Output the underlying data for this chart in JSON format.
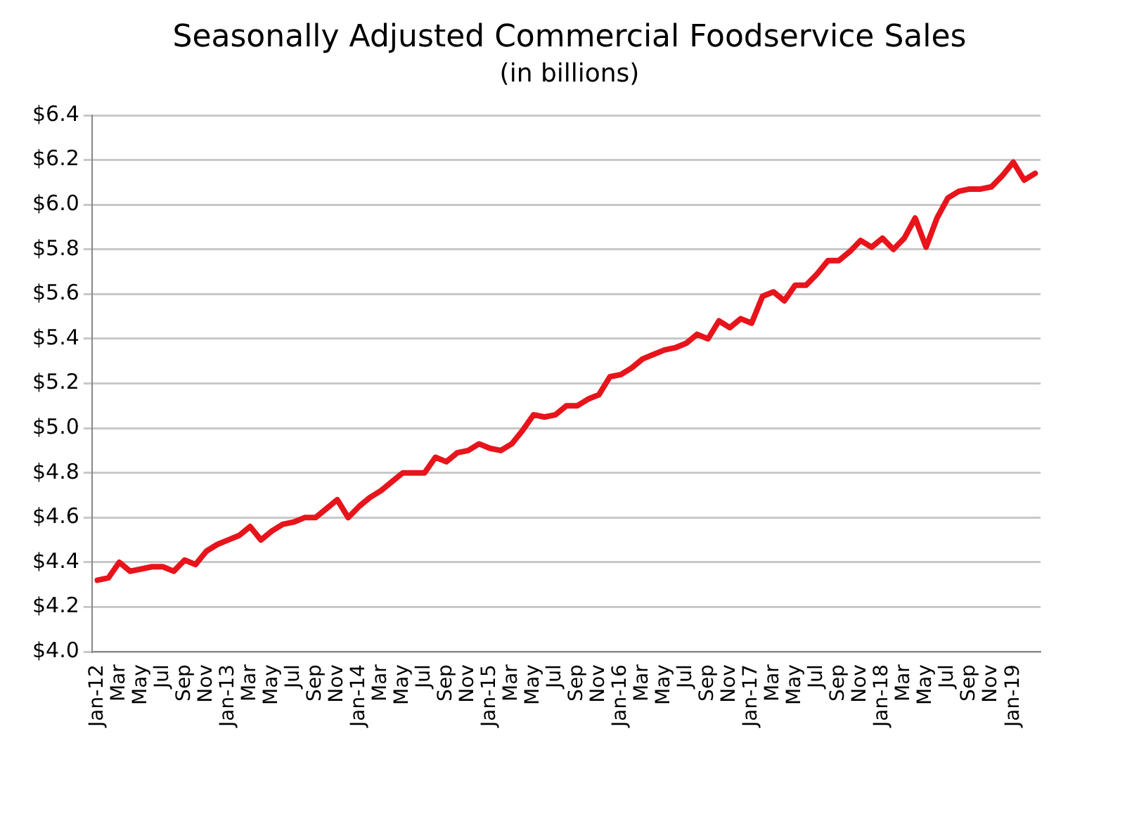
{
  "chart_data": {
    "type": "line",
    "title": "Seasonally Adjusted Commercial Foodservice Sales",
    "subtitle": "(in billions)",
    "categories": [
      "Jan-12",
      null,
      "Mar",
      null,
      "May",
      null,
      "Jul",
      null,
      "Sep",
      null,
      "Nov",
      null,
      "Jan-13",
      null,
      "Mar",
      null,
      "May",
      null,
      "Jul",
      null,
      "Sep",
      null,
      "Nov",
      null,
      "Jan-14",
      null,
      "Mar",
      null,
      "May",
      null,
      "Jul",
      null,
      "Sep",
      null,
      "Nov",
      null,
      "Jan-15",
      null,
      "Mar",
      null,
      "May",
      null,
      "Jul",
      null,
      "Sep",
      null,
      "Nov",
      null,
      "Jan-16",
      null,
      "Mar",
      null,
      "May",
      null,
      "Jul",
      null,
      "Sep",
      null,
      "Nov",
      null,
      "Jan-17",
      null,
      "Mar",
      null,
      "May",
      null,
      "Jul",
      null,
      "Sep",
      null,
      "Nov",
      null,
      "Jan-18",
      null,
      "Mar",
      null,
      "May",
      null,
      "Jul",
      null,
      "Sep",
      null,
      "Nov",
      null,
      "Jan-19",
      null,
      null
    ],
    "series": [
      {
        "color": "#e8141b",
        "values": [
          4.32,
          4.33,
          4.4,
          4.36,
          4.37,
          4.38,
          4.38,
          4.36,
          4.41,
          4.39,
          4.45,
          4.48,
          4.5,
          4.52,
          4.56,
          4.5,
          4.54,
          4.57,
          4.58,
          4.6,
          4.6,
          4.64,
          4.68,
          4.6,
          4.65,
          4.69,
          4.72,
          4.76,
          4.8,
          4.8,
          4.8,
          4.87,
          4.85,
          4.89,
          4.9,
          4.93,
          4.91,
          4.9,
          4.93,
          4.99,
          5.06,
          5.05,
          5.06,
          5.1,
          5.1,
          5.13,
          5.15,
          5.23,
          5.24,
          5.27,
          5.31,
          5.33,
          5.35,
          5.36,
          5.38,
          5.42,
          5.4,
          5.48,
          5.45,
          5.49,
          5.47,
          5.59,
          5.61,
          5.57,
          5.64,
          5.64,
          5.69,
          5.75,
          5.75,
          5.79,
          5.84,
          5.81,
          5.85,
          5.8,
          5.85,
          5.94,
          5.81,
          5.94,
          6.03,
          6.06,
          6.07,
          6.07,
          6.08,
          6.13,
          6.19,
          6.11,
          6.14
        ]
      }
    ],
    "ylim": [
      4.0,
      6.4
    ],
    "yticks": [
      {
        "value": 4.0,
        "label": "$4.0"
      },
      {
        "value": 4.2,
        "label": "$4.2"
      },
      {
        "value": 4.4,
        "label": "$4.4"
      },
      {
        "value": 4.6,
        "label": "$4.6"
      },
      {
        "value": 4.8,
        "label": "$4.8"
      },
      {
        "value": 5.0,
        "label": "$5.0"
      },
      {
        "value": 5.2,
        "label": "$5.2"
      },
      {
        "value": 5.4,
        "label": "$5.4"
      },
      {
        "value": 5.6,
        "label": "$5.6"
      },
      {
        "value": 5.8,
        "label": "$5.8"
      },
      {
        "value": 6.0,
        "label": "$6.0"
      },
      {
        "value": 6.2,
        "label": "$6.2"
      },
      {
        "value": 6.4,
        "label": "$6.4"
      }
    ],
    "grid": "y",
    "legend": false,
    "marker": "none",
    "line_style": "solid"
  }
}
